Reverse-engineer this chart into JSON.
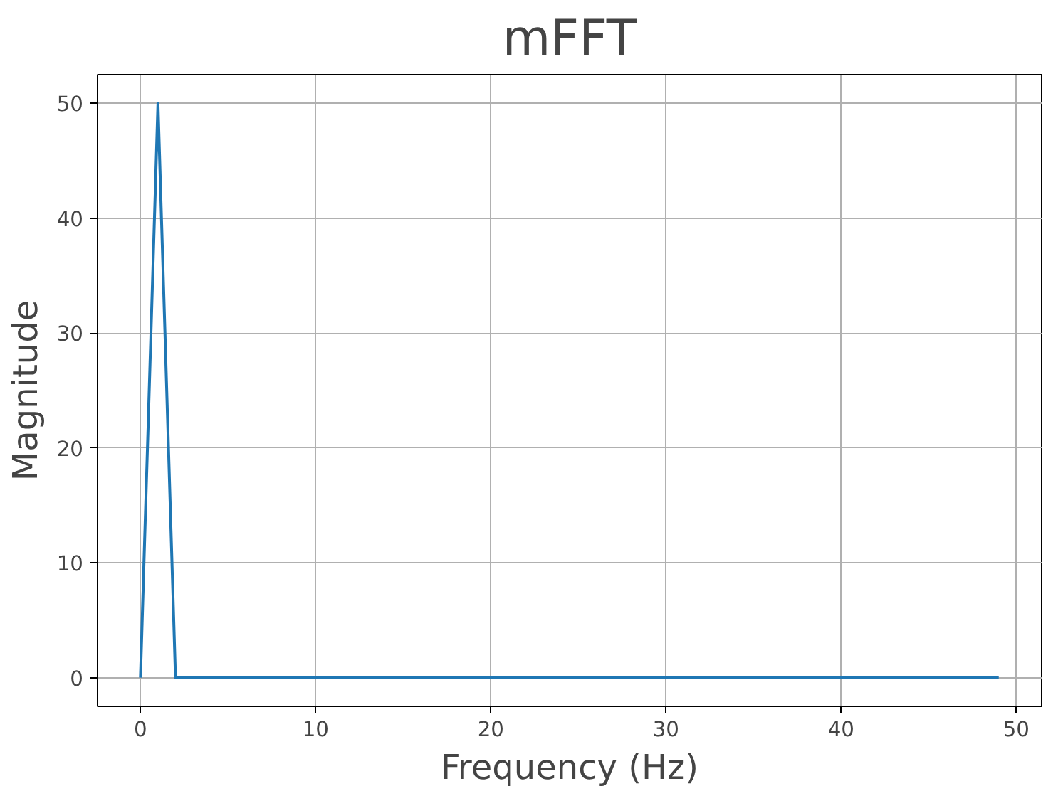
{
  "chart_data": {
    "type": "line",
    "title": "mFFT",
    "xlabel": "Frequency (Hz)",
    "ylabel": "Magnitude",
    "x": [
      0,
      1,
      2,
      49
    ],
    "series": [
      {
        "color": "#1f77b4",
        "values": [
          0,
          50,
          0,
          0
        ]
      }
    ],
    "xlim": [
      -2.45,
      51.45
    ],
    "ylim": [
      -2.5,
      52.5
    ],
    "xticks": [
      0,
      10,
      20,
      30,
      40,
      50
    ],
    "yticks": [
      0,
      10,
      20,
      30,
      40,
      50
    ],
    "grid": true,
    "marker": "none",
    "line_style": "solid"
  }
}
